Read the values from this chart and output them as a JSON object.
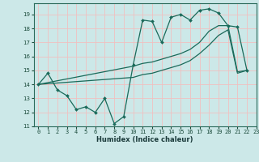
{
  "xlabel": "Humidex (Indice chaleur)",
  "bg_color": "#cce8e8",
  "grid_color": "#f0c0c0",
  "line_color": "#1a6a5a",
  "xlim": [
    -0.5,
    23
  ],
  "ylim": [
    11,
    19.8
  ],
  "yticks": [
    11,
    12,
    13,
    14,
    15,
    16,
    17,
    18,
    19
  ],
  "xticks": [
    0,
    1,
    2,
    3,
    4,
    5,
    6,
    7,
    8,
    9,
    10,
    11,
    12,
    13,
    14,
    15,
    16,
    17,
    18,
    19,
    20,
    21,
    22,
    23
  ],
  "series1_x": [
    0,
    1,
    2,
    3,
    4,
    5,
    6,
    7,
    8,
    9,
    10,
    11,
    12,
    13,
    14,
    15,
    16,
    17,
    18,
    19,
    20,
    21,
    22
  ],
  "series1_y": [
    14.0,
    14.8,
    13.6,
    13.2,
    12.2,
    12.4,
    12.0,
    13.0,
    11.2,
    11.7,
    15.4,
    18.6,
    18.5,
    17.0,
    18.8,
    19.0,
    18.6,
    19.3,
    19.4,
    19.1,
    18.2,
    18.1,
    15.0
  ],
  "series2_x": [
    0,
    10,
    11,
    12,
    13,
    14,
    15,
    16,
    17,
    18,
    19,
    20,
    21,
    22
  ],
  "series2_y": [
    14.0,
    15.3,
    15.5,
    15.6,
    15.8,
    16.0,
    16.2,
    16.5,
    17.0,
    17.8,
    18.2,
    18.2,
    14.9,
    15.0
  ],
  "series3_x": [
    0,
    10,
    11,
    12,
    13,
    14,
    15,
    16,
    17,
    18,
    19,
    20,
    21,
    22
  ],
  "series3_y": [
    14.0,
    14.5,
    14.7,
    14.8,
    15.0,
    15.2,
    15.4,
    15.7,
    16.2,
    16.8,
    17.5,
    17.9,
    14.8,
    15.0
  ]
}
